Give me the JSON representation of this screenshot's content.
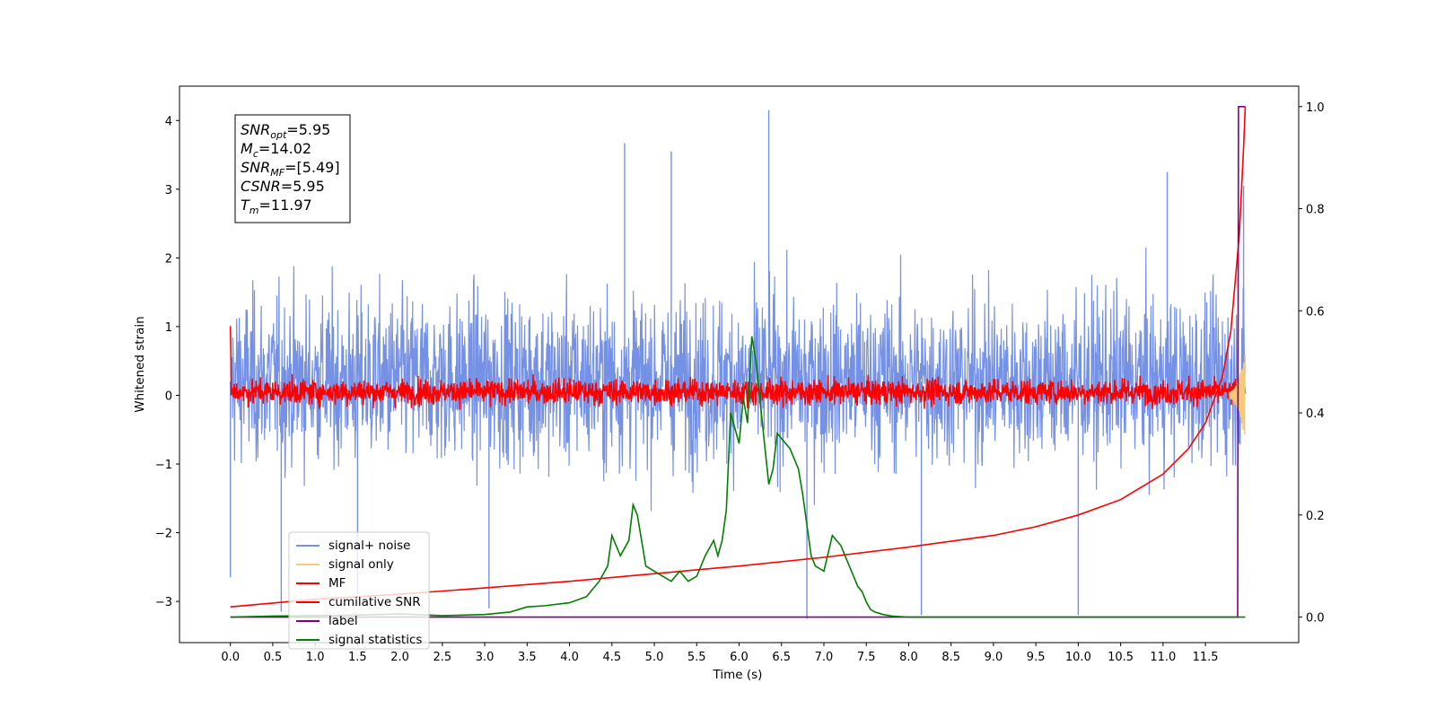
{
  "chart_data": {
    "type": "line",
    "xlabel": "Time (s)",
    "ylabel": "Whitened strain",
    "xlim": [
      -0.6,
      12.6
    ],
    "ylim": [
      -3.6,
      4.5
    ],
    "y2lim": [
      -0.05,
      1.04
    ],
    "xticks": [
      "0.0",
      "0.5",
      "1.0",
      "1.5",
      "2.0",
      "2.5",
      "3.0",
      "3.5",
      "4.0",
      "4.5",
      "5.0",
      "5.5",
      "6.0",
      "6.5",
      "7.0",
      "7.5",
      "8.0",
      "8.5",
      "9.0",
      "9.5",
      "10.0",
      "10.5",
      "11.0",
      "11.5"
    ],
    "yticks": [
      "4",
      "3",
      "2",
      "1",
      "0",
      "−1",
      "−2",
      "−3"
    ],
    "y2ticks": [
      "1.0",
      "0.8",
      "0.6",
      "0.4",
      "0.2",
      "0.0"
    ],
    "grid": false,
    "legend_position": "lower-left",
    "info_box": {
      "lines": [
        {
          "symbol": "SNR",
          "sub": "opt",
          "value": "=5.95"
        },
        {
          "symbol": "M",
          "sub": "c",
          "value": "=14.02"
        },
        {
          "symbol": "SNR",
          "sub": "MF",
          "value": "=[5.49]"
        },
        {
          "symbol": "CSNR",
          "sub": "",
          "value": "=5.95"
        },
        {
          "symbol": "T",
          "sub": "m",
          "value": "=11.97"
        }
      ]
    },
    "series": [
      {
        "name": "signal+ noise",
        "color": "#7591e6",
        "axis": "left",
        "description": "noise band roughly between -2.3 and 2.7 with spikes up to 4.15 and down to -3.2",
        "peaks": [
          [
            0.0,
            -2.65
          ],
          [
            0.6,
            -3.15
          ],
          [
            1.5,
            -2.9
          ],
          [
            3.05,
            -3.1
          ],
          [
            4.65,
            3.67
          ],
          [
            5.2,
            3.55
          ],
          [
            6.35,
            4.15
          ],
          [
            6.8,
            -3.25
          ],
          [
            8.15,
            -3.2
          ],
          [
            10.0,
            -3.2
          ],
          [
            11.05,
            3.25
          ],
          [
            11.95,
            3.05
          ]
        ]
      },
      {
        "name": "signal only",
        "color": "#f5c87a",
        "axis": "left",
        "description": "near zero, small chirp at end around 11.8-11.97 s"
      },
      {
        "name": "MF",
        "color": "#ff0000",
        "axis": "left",
        "description": "band between about -0.3 and 0.4, spike to 1.0 at t=0"
      },
      {
        "name": "cumilative SNR",
        "color": "#ff0000",
        "axis": "right",
        "x": [
          0.0,
          1.0,
          2.0,
          3.0,
          4.0,
          5.0,
          6.0,
          7.0,
          8.0,
          9.0,
          9.5,
          10.0,
          10.5,
          11.0,
          11.3,
          11.5,
          11.7,
          11.8,
          11.9,
          11.95,
          11.97
        ],
        "y": [
          0.02,
          0.035,
          0.045,
          0.057,
          0.07,
          0.085,
          0.1,
          0.117,
          0.137,
          0.16,
          0.177,
          0.2,
          0.23,
          0.28,
          0.33,
          0.38,
          0.47,
          0.56,
          0.75,
          0.92,
          1.0
        ]
      },
      {
        "name": "label",
        "color": "#800080",
        "axis": "right",
        "x": [
          0.0,
          11.88,
          11.89,
          11.97
        ],
        "y": [
          0.0,
          0.0,
          1.0,
          1.0
        ]
      },
      {
        "name": "signal statistics",
        "color": "#008000",
        "axis": "right",
        "x": [
          0.0,
          0.5,
          1.0,
          1.5,
          2.0,
          2.5,
          3.0,
          3.3,
          3.5,
          3.7,
          4.0,
          4.2,
          4.35,
          4.45,
          4.5,
          4.6,
          4.7,
          4.75,
          4.8,
          4.85,
          4.9,
          5.0,
          5.2,
          5.3,
          5.4,
          5.5,
          5.6,
          5.7,
          5.75,
          5.8,
          5.85,
          5.9,
          6.0,
          6.05,
          6.1,
          6.15,
          6.2,
          6.25,
          6.3,
          6.35,
          6.4,
          6.45,
          6.5,
          6.55,
          6.6,
          6.65,
          6.7,
          6.75,
          6.8,
          6.85,
          6.9,
          7.0,
          7.1,
          7.2,
          7.3,
          7.4,
          7.45,
          7.5,
          7.55,
          7.6,
          7.7,
          7.8,
          7.9,
          8.0,
          8.2,
          8.5,
          9.0,
          9.5,
          10.0,
          11.0,
          11.97
        ],
        "y": [
          0.0,
          0.002,
          0.003,
          0.004,
          0.006,
          0.003,
          0.005,
          0.01,
          0.02,
          0.022,
          0.028,
          0.04,
          0.07,
          0.1,
          0.16,
          0.12,
          0.15,
          0.22,
          0.2,
          0.15,
          0.1,
          0.09,
          0.07,
          0.09,
          0.07,
          0.08,
          0.12,
          0.15,
          0.12,
          0.15,
          0.21,
          0.4,
          0.34,
          0.43,
          0.38,
          0.55,
          0.5,
          0.42,
          0.34,
          0.26,
          0.29,
          0.36,
          0.35,
          0.34,
          0.33,
          0.31,
          0.29,
          0.24,
          0.18,
          0.12,
          0.1,
          0.09,
          0.16,
          0.14,
          0.1,
          0.06,
          0.05,
          0.03,
          0.015,
          0.01,
          0.005,
          0.002,
          0.001,
          0.0,
          0.0,
          0.0,
          0.0,
          0.0,
          0.0,
          0.0,
          0.0
        ]
      }
    ]
  }
}
